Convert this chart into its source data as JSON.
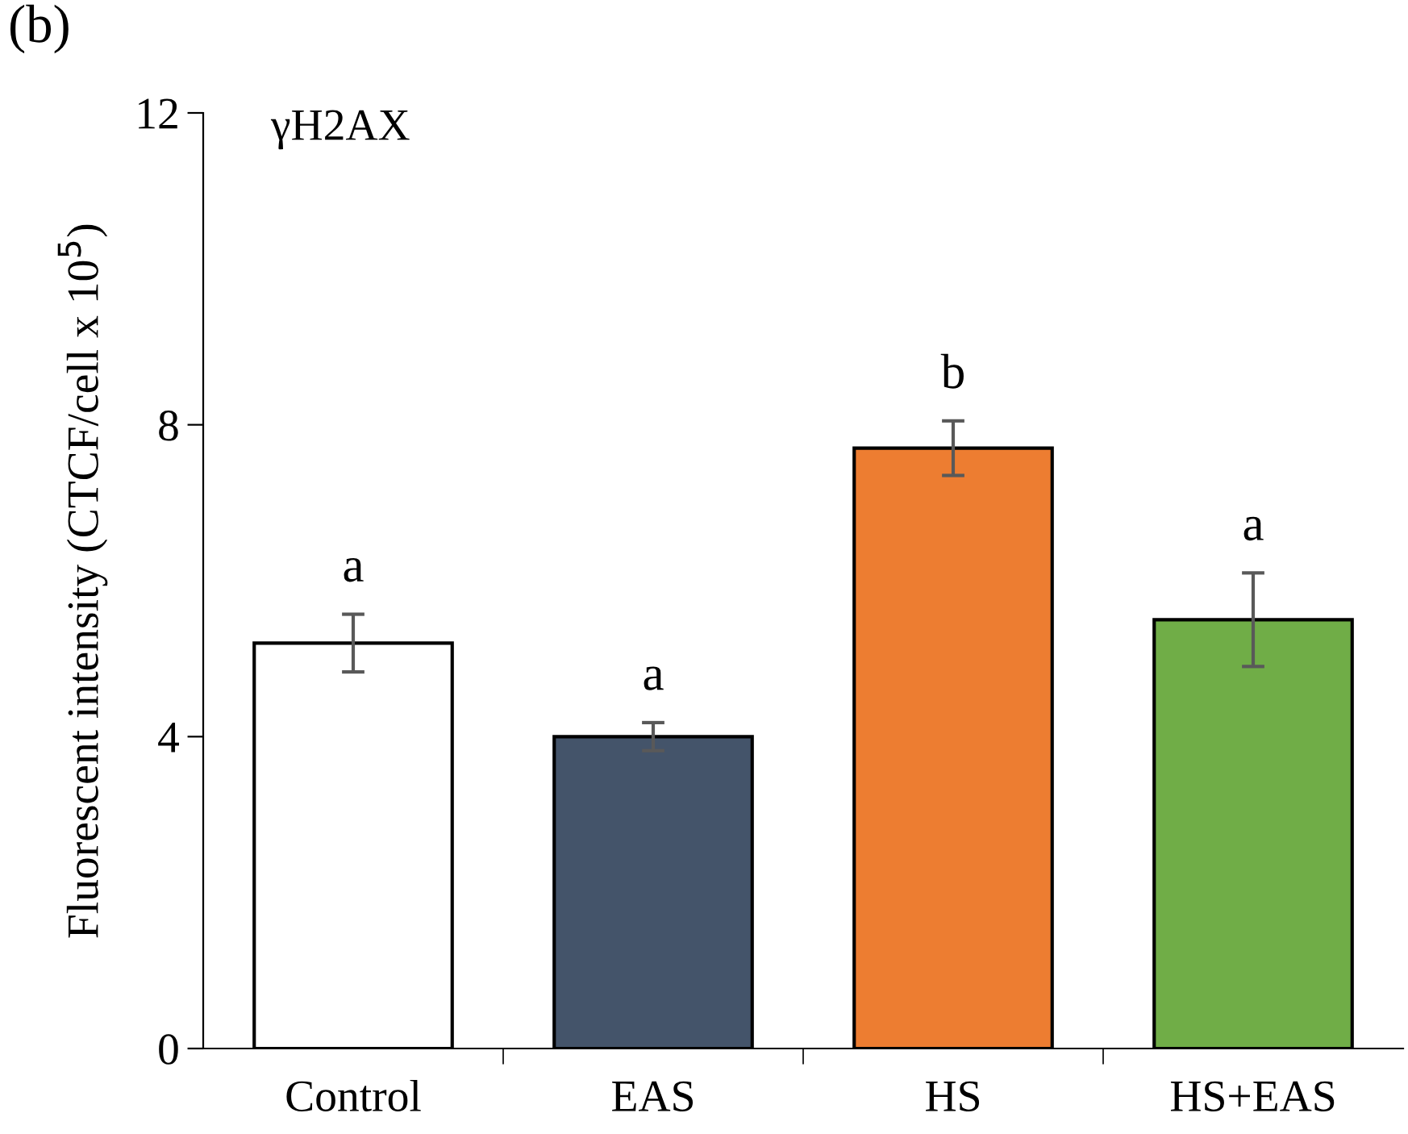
{
  "chart_data": {
    "type": "bar",
    "ylabel": "Fluorescent intensity (CTCF/cell x 10$^{5}$)",
    "categories": [
      "Control",
      "EAS",
      "HS",
      "HS+EAS"
    ],
    "values": [
      5.2,
      4.0,
      7.7,
      5.5
    ],
    "colors": [
      "#ffffff",
      "#44546a",
      "#ed7d31",
      "#70ad47"
    ],
    "errors": [
      0.37,
      0.18,
      0.35,
      0.6
    ],
    "ylim": [
      0,
      12
    ],
    "yticks": [
      0,
      4,
      8,
      12
    ],
    "grid": false,
    "legend": false,
    "annotations": [
      "(b)",
      "γH2AX",
      "a",
      "a",
      "b",
      "a"
    ]
  }
}
